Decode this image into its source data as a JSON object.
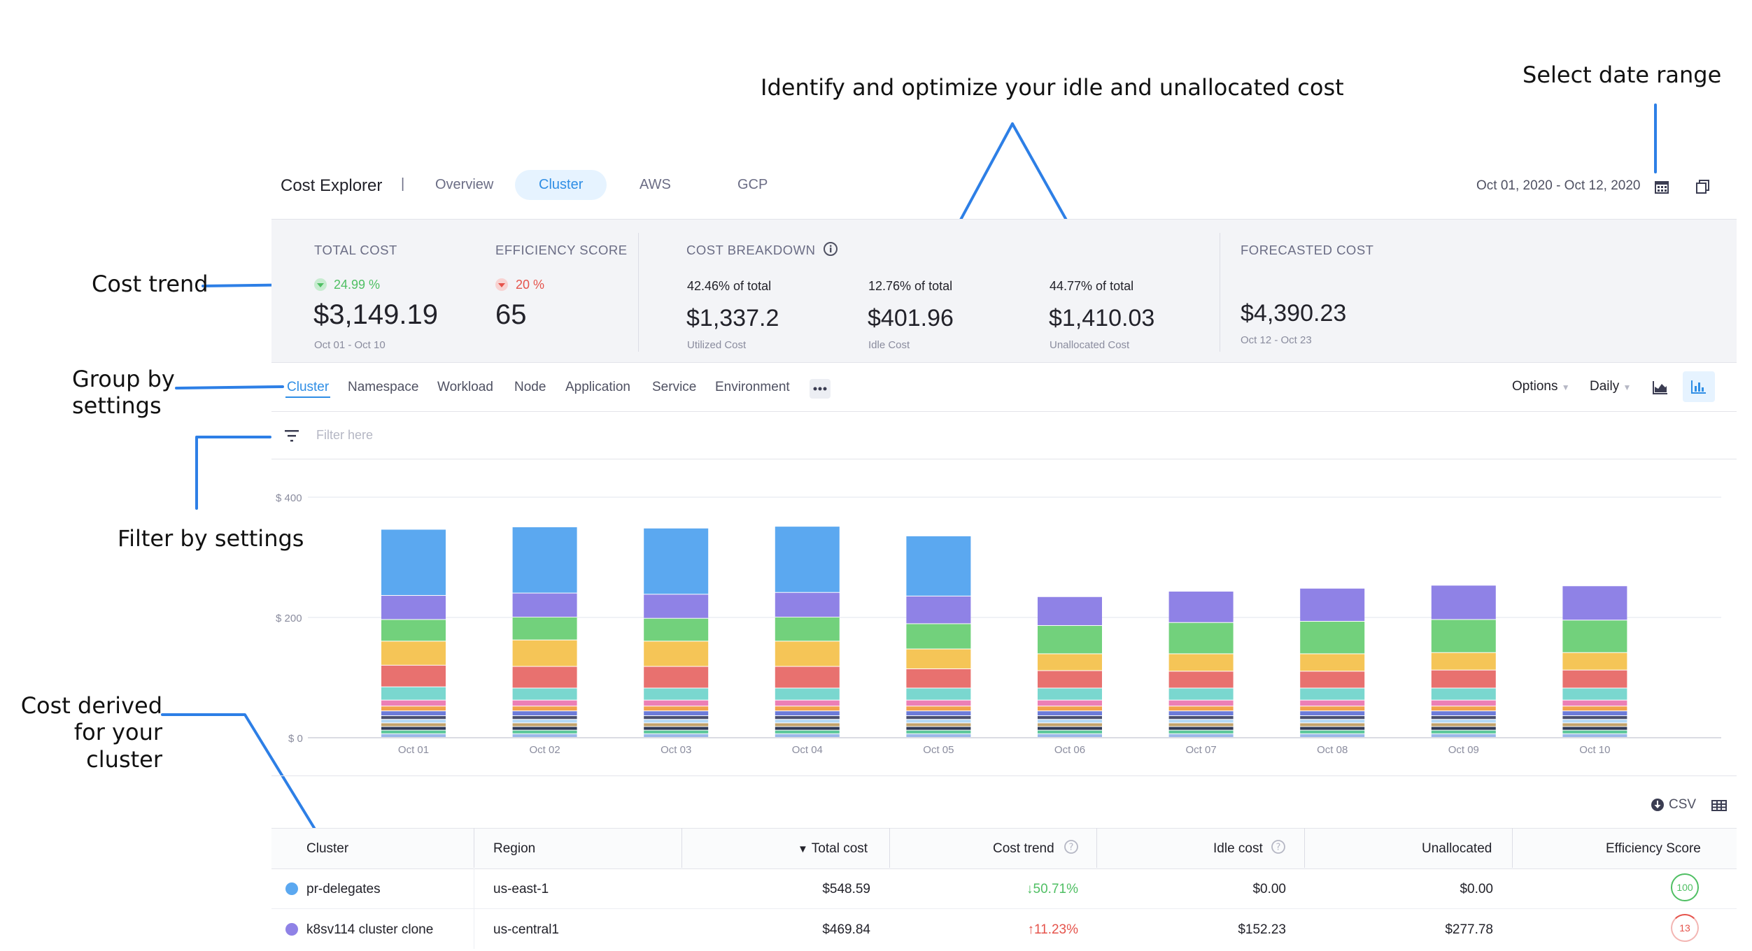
{
  "annotations": {
    "idle": "Identify and optimize your idle and unallocated cost",
    "date": "Select date range",
    "trend": "Cost trend",
    "group_line1": "Group by",
    "group_line2": "settings",
    "filter": "Filter by settings",
    "derived_line1": "Cost derived",
    "derived_line2": "for your cluster"
  },
  "nav": {
    "title": "Cost Explorer",
    "separator": "|",
    "tabs": [
      "Overview",
      "Cluster",
      "AWS",
      "GCP"
    ],
    "active_tab": "Cluster",
    "date_range": "Oct 01, 2020 - Oct 12, 2020"
  },
  "summary": {
    "total": {
      "label": "TOTAL COST",
      "trend": "24.99 %",
      "value": "$3,149.19",
      "period": "Oct 01 - Oct 10"
    },
    "efficiency": {
      "label": "EFFICIENCY SCORE",
      "trend": "20 %",
      "value": "65"
    },
    "breakdown": {
      "label": "COST BREAKDOWN",
      "items": [
        {
          "share": "42.46% of total",
          "value": "$1,337.2",
          "name": "Utilized Cost"
        },
        {
          "share": "12.76% of total",
          "value": "$401.96",
          "name": "Idle Cost"
        },
        {
          "share": "44.77% of total",
          "value": "$1,410.03",
          "name": "Unallocated Cost"
        }
      ]
    },
    "forecast": {
      "label": "FORECASTED COST",
      "value": "$4,390.23",
      "period": "Oct 12 - Oct 23"
    }
  },
  "group_by": {
    "tabs": [
      "Cluster",
      "Namespace",
      "Workload",
      "Node",
      "Application",
      "Service",
      "Environment"
    ],
    "active": "Cluster",
    "options_label": "Options",
    "granularity_label": "Daily"
  },
  "filter": {
    "placeholder": "Filter here"
  },
  "chart_data": {
    "type": "bar",
    "stacked": true,
    "categories": [
      "Oct 01",
      "Oct 02",
      "Oct 03",
      "Oct 04",
      "Oct 05",
      "Oct 06",
      "Oct 07",
      "Oct 08",
      "Oct 09",
      "Oct 10"
    ],
    "y_ticks": [
      "$ 400",
      "$ 200",
      "$ 0"
    ],
    "ylim": [
      0,
      400
    ],
    "grid": true,
    "series": [
      {
        "color": "#5ba8f0",
        "values": [
          110,
          110,
          110,
          110,
          100,
          0,
          0,
          0,
          0,
          0
        ]
      },
      {
        "color": "#8f82e6",
        "values": [
          40,
          40,
          40,
          41,
          46,
          48,
          52,
          55,
          57,
          57
        ]
      },
      {
        "color": "#72d17c",
        "values": [
          36,
          38,
          38,
          40,
          42,
          47,
          52,
          54,
          55,
          54
        ]
      },
      {
        "color": "#f5c557",
        "values": [
          40,
          44,
          42,
          42,
          33,
          28,
          29,
          29,
          29,
          29
        ]
      },
      {
        "color": "#e8716f",
        "values": [
          36,
          36,
          36,
          36,
          32,
          29,
          28,
          28,
          30,
          30
        ]
      },
      {
        "color": "#7ad7cf",
        "values": [
          22,
          20,
          20,
          20,
          20,
          20,
          20,
          20,
          20,
          20
        ]
      },
      {
        "color": "#ec7fb5",
        "values": [
          10,
          10,
          10,
          10,
          10,
          10,
          10,
          10,
          10,
          10
        ]
      },
      {
        "color": "#f2a24b",
        "values": [
          8,
          8,
          8,
          8,
          8,
          8,
          8,
          8,
          8,
          8
        ]
      },
      {
        "color": "#6c7bd9",
        "values": [
          8,
          8,
          8,
          8,
          8,
          8,
          8,
          8,
          8,
          8
        ]
      },
      {
        "color": "#4a4f6e",
        "values": [
          6,
          6,
          6,
          6,
          6,
          6,
          6,
          6,
          6,
          6
        ]
      },
      {
        "color": "#b3d9f5",
        "values": [
          6,
          6,
          6,
          6,
          6,
          6,
          6,
          6,
          6,
          6
        ]
      },
      {
        "color": "#c2a26a",
        "values": [
          6,
          6,
          6,
          6,
          6,
          6,
          6,
          6,
          6,
          6
        ]
      },
      {
        "color": "#2e3a59",
        "values": [
          6,
          6,
          6,
          6,
          6,
          6,
          6,
          6,
          6,
          6
        ]
      },
      {
        "color": "#5bc79a",
        "values": [
          6,
          6,
          6,
          6,
          6,
          6,
          6,
          6,
          6,
          6
        ]
      },
      {
        "color": "#9bb8e8",
        "values": [
          6,
          6,
          6,
          6,
          6,
          6,
          6,
          6,
          6,
          6
        ]
      }
    ]
  },
  "table": {
    "csv_label": "CSV",
    "columns": [
      "Cluster",
      "Region",
      "Total cost",
      "Cost trend",
      "Idle cost",
      "Unallocated",
      "Efficiency Score"
    ],
    "sort_indicator": "▼",
    "rows": [
      {
        "dot_color": "#5ba8f0",
        "cluster": "pr-delegates",
        "region": "us-east-1",
        "total": "$548.59",
        "trend": "↓50.71%",
        "trend_dir": "down",
        "idle": "$0.00",
        "unallocated": "$0.00",
        "score": "100",
        "score_color": "#4fbf63"
      },
      {
        "dot_color": "#8f82e6",
        "cluster": "k8sv114 cluster clone",
        "region": "us-central1",
        "total": "$469.84",
        "trend": "↑11.23%",
        "trend_dir": "up",
        "idle": "$152.23",
        "unallocated": "$277.78",
        "score": "13",
        "score_color": "#e5534b"
      }
    ]
  }
}
